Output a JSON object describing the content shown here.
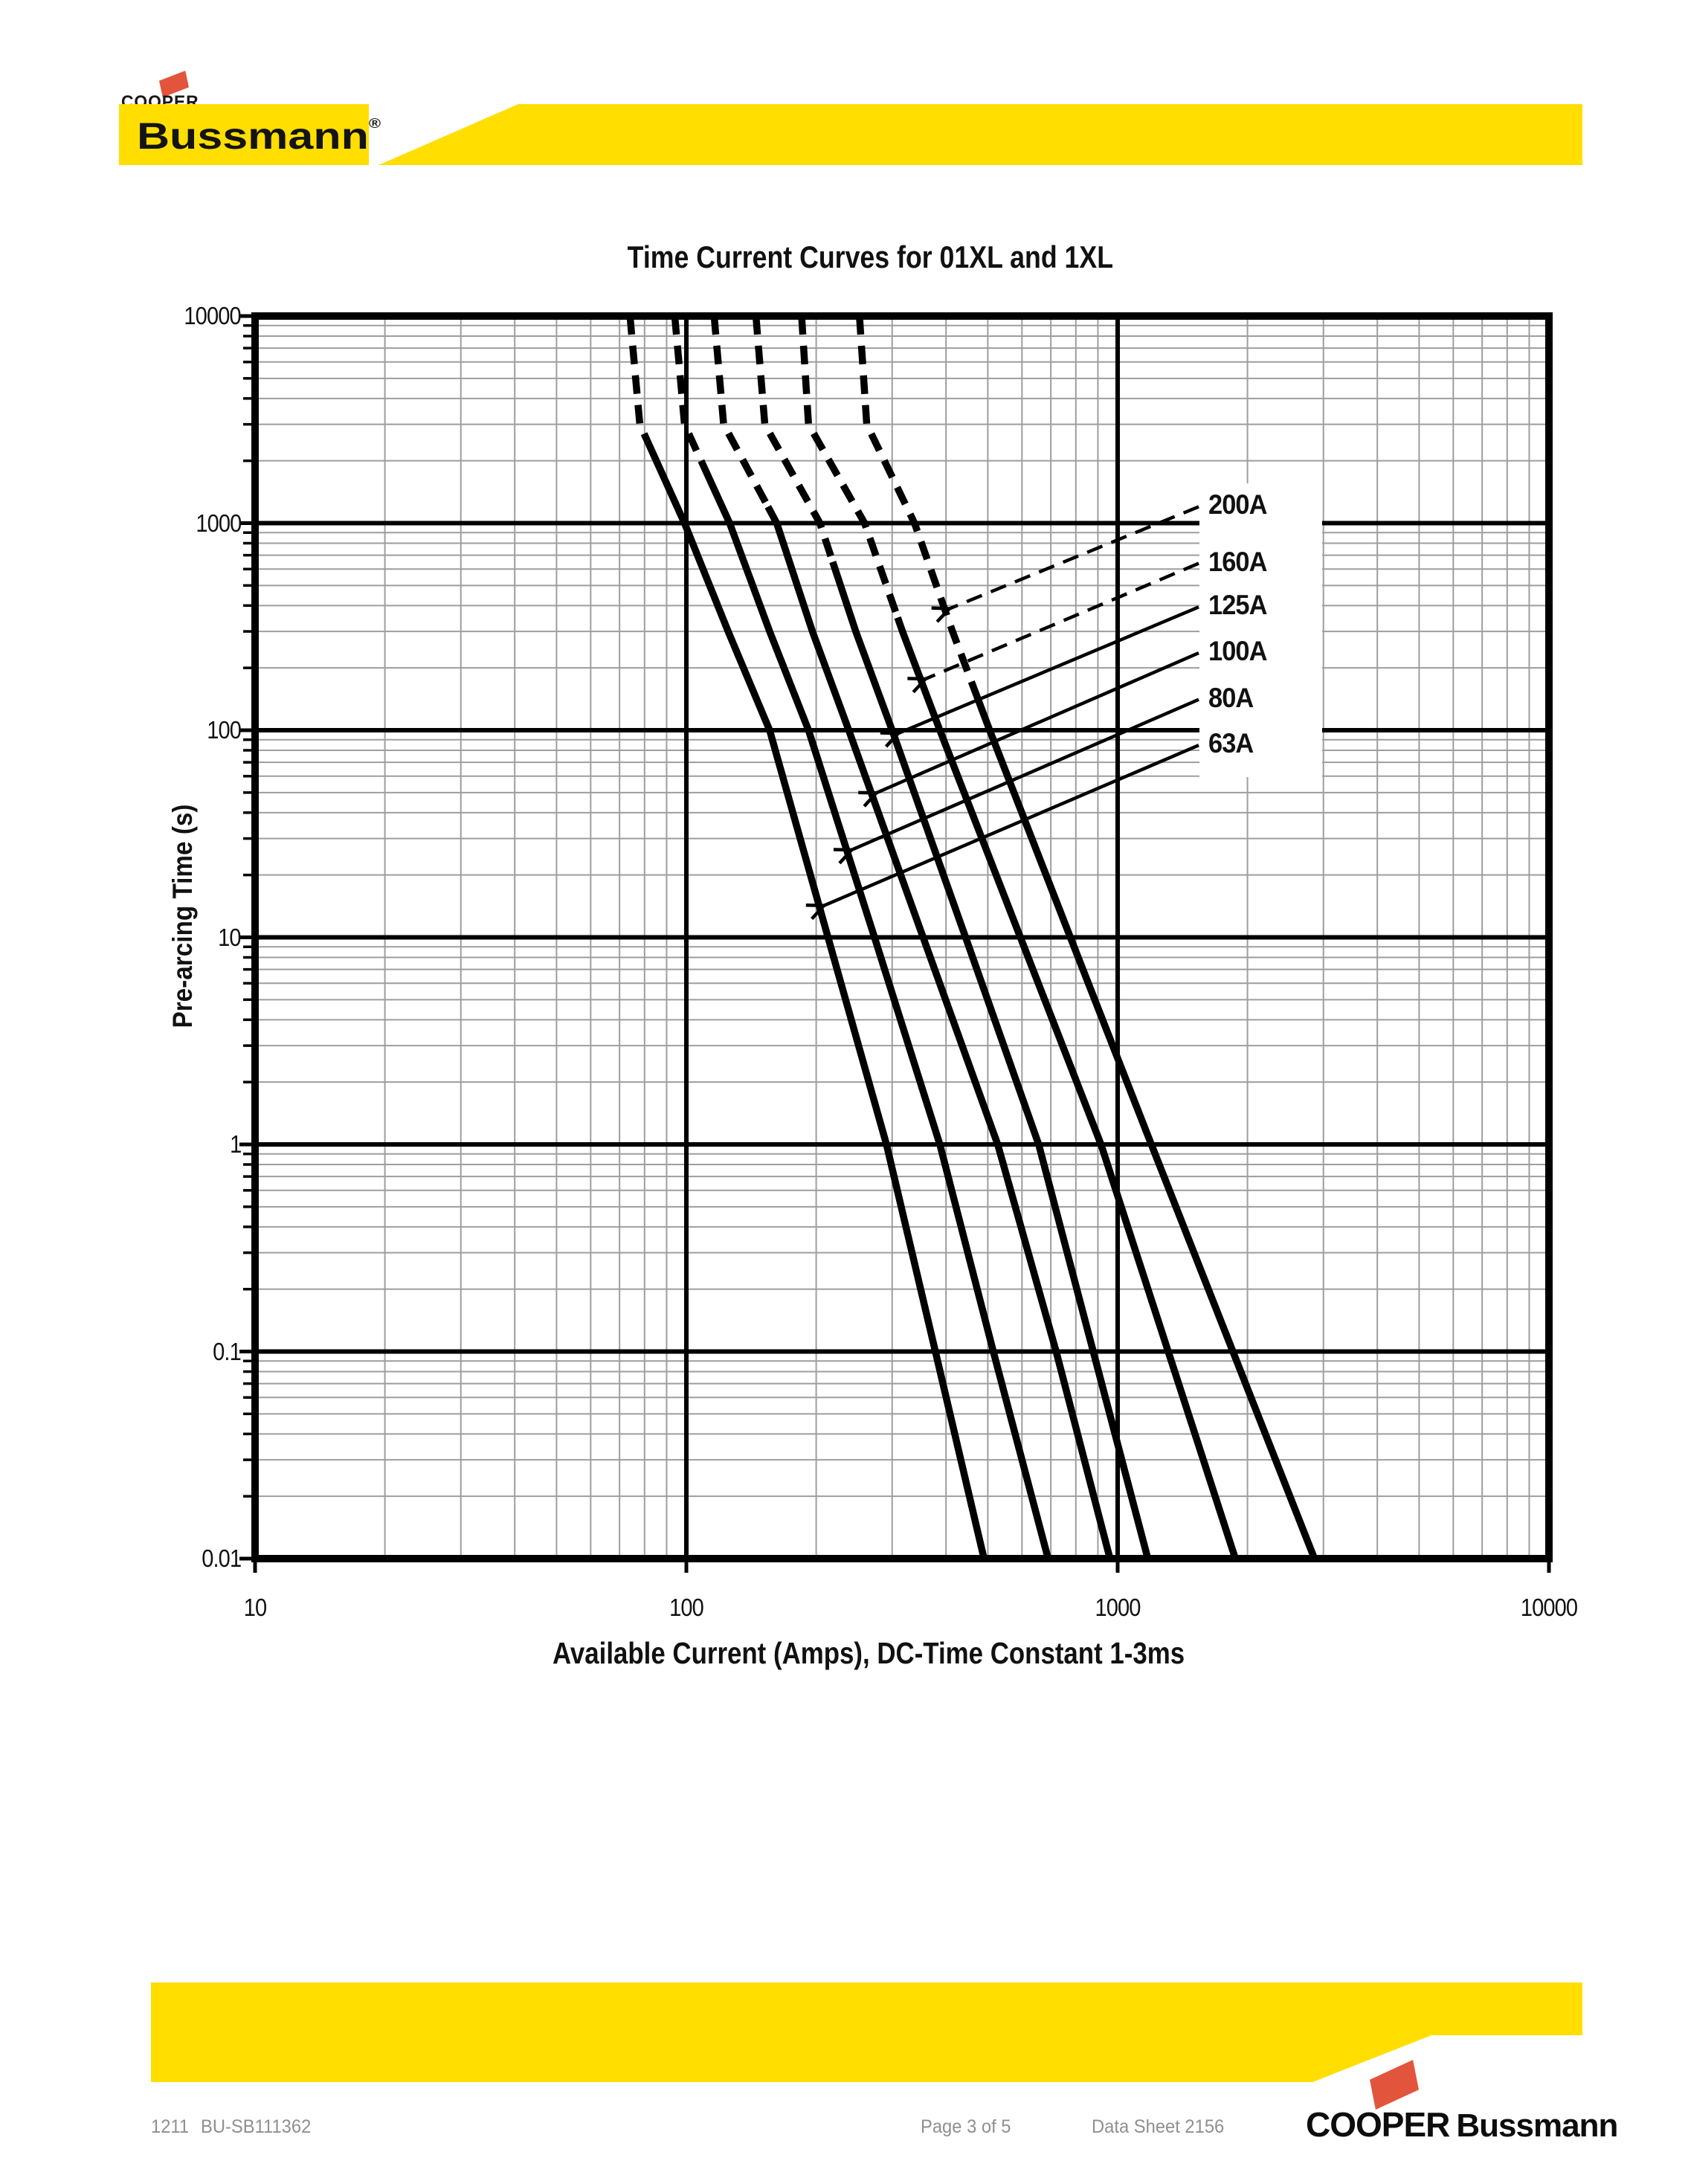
{
  "header": {
    "brand_top": "COOPER",
    "brand_main": "Bussmann",
    "registered_mark": "®"
  },
  "chart": {
    "title": "Time Current Curves for 01XL and 1XL",
    "x_axis_label": "Available Current (Amps), DC-Time Constant 1-3ms",
    "y_axis_label": "Pre-arcing Time (s)"
  },
  "chart_data": {
    "type": "line",
    "title": "Time Current Curves for 01XL and 1XL",
    "xlabel": "Available Current (Amps), DC-Time Constant 1-3ms",
    "ylabel": "Pre-arcing Time (s)",
    "x_scale": "log",
    "y_scale": "log",
    "xlim": [
      10,
      10000
    ],
    "ylim": [
      0.01,
      10000
    ],
    "x_ticks": [
      "10",
      "100",
      "1000",
      "10000"
    ],
    "y_ticks": [
      "10000",
      "1000",
      "100",
      "10",
      "1",
      "0.1",
      "0.01"
    ],
    "grid": {
      "minor_log_gray": true,
      "major_decade_black": true
    },
    "legend_position": "inside-right labels with leader arrows",
    "series": [
      {
        "name": "63A",
        "rating_amps": 63,
        "points_current_amps_time_s": [
          [
            74,
            10000
          ],
          [
            78,
            3000
          ],
          [
            99,
            1000
          ],
          [
            125,
            300
          ],
          [
            156,
            100
          ],
          [
            213,
            10
          ],
          [
            291,
            1
          ],
          [
            378,
            0.1
          ],
          [
            490,
            0.01
          ]
        ],
        "dashed_above_seconds": 2500,
        "label_at_seconds": 86,
        "arrow_target_seconds": 14,
        "leader_dashed": false
      },
      {
        "name": "80A",
        "rating_amps": 80,
        "points_current_amps_time_s": [
          [
            94,
            10000
          ],
          [
            99,
            3000
          ],
          [
            126,
            1000
          ],
          [
            156,
            300
          ],
          [
            192,
            100
          ],
          [
            273,
            10
          ],
          [
            387,
            1
          ],
          [
            515,
            0.1
          ],
          [
            690,
            0.01
          ]
        ],
        "dashed_above_seconds": 2000,
        "label_at_seconds": 143,
        "arrow_target_seconds": 26,
        "leader_dashed": false
      },
      {
        "name": "100A",
        "rating_amps": 100,
        "points_current_amps_time_s": [
          [
            116,
            10000
          ],
          [
            122,
            3000
          ],
          [
            162,
            1000
          ],
          [
            196,
            300
          ],
          [
            238,
            100
          ],
          [
            354,
            10
          ],
          [
            527,
            1
          ],
          [
            720,
            0.1
          ],
          [
            960,
            0.01
          ]
        ],
        "dashed_above_seconds": 1200,
        "label_at_seconds": 240,
        "arrow_target_seconds": 49,
        "leader_dashed": false
      },
      {
        "name": "125A",
        "rating_amps": 125,
        "points_current_amps_time_s": [
          [
            145,
            10000
          ],
          [
            152,
            3000
          ],
          [
            204,
            1000
          ],
          [
            247,
            300
          ],
          [
            300,
            100
          ],
          [
            444,
            10
          ],
          [
            656,
            1
          ],
          [
            878,
            0.1
          ],
          [
            1175,
            0.01
          ]
        ],
        "dashed_above_seconds": 650,
        "label_at_seconds": 400,
        "arrow_target_seconds": 95,
        "leader_dashed": false
      },
      {
        "name": "160A",
        "rating_amps": 160,
        "points_current_amps_time_s": [
          [
            185,
            10000
          ],
          [
            192,
            3000
          ],
          [
            259,
            1000
          ],
          [
            317,
            300
          ],
          [
            387,
            100
          ],
          [
            595,
            10
          ],
          [
            915,
            1
          ],
          [
            1310,
            0.1
          ],
          [
            1875,
            0.01
          ]
        ],
        "dashed_above_seconds": 350,
        "label_at_seconds": 650,
        "arrow_target_seconds": 174,
        "leader_dashed": true
      },
      {
        "name": "200A",
        "rating_amps": 200,
        "points_current_amps_time_s": [
          [
            252,
            10000
          ],
          [
            262,
            3000
          ],
          [
            338,
            1000
          ],
          [
            414,
            300
          ],
          [
            505,
            100
          ],
          [
            777,
            10
          ],
          [
            1197,
            1
          ],
          [
            1850,
            0.1
          ],
          [
            2860,
            0.01
          ]
        ],
        "dashed_above_seconds": 140,
        "label_at_seconds": 1220,
        "arrow_target_seconds": 380,
        "leader_dashed": true
      }
    ]
  },
  "footer": {
    "doc_number": "1211",
    "doc_code": "BU-SB111362",
    "page_indicator": "Page 3 of 5",
    "datasheet": "Data Sheet 2156",
    "brand_left": "COOPER",
    "brand_right": "Bussmann"
  },
  "colors": {
    "brand_yellow": "#FFDE00",
    "brand_red": "#E2553C",
    "curve_black": "#000000",
    "grid_minor_gray": "#9E9E9E",
    "footer_text_gray": "#8F8F8F"
  }
}
